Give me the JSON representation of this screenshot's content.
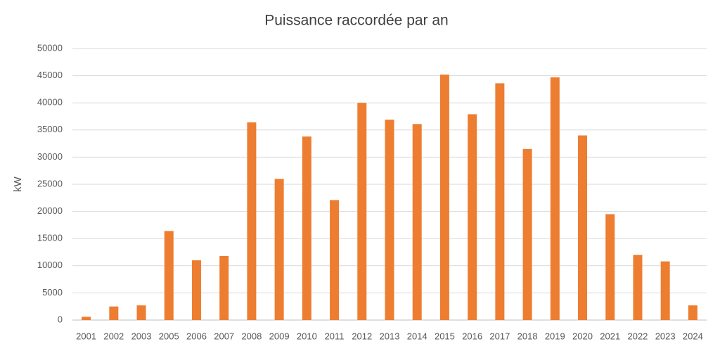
{
  "chart_data": {
    "type": "bar",
    "title": "Puissance raccordée par an",
    "y_label": "kW",
    "categories": [
      "2001",
      "2002",
      "2003",
      "2005",
      "2006",
      "2007",
      "2008",
      "2009",
      "2010",
      "2011",
      "2012",
      "2013",
      "2014",
      "2015",
      "2016",
      "2017",
      "2018",
      "2019",
      "2020",
      "2021",
      "2022",
      "2023",
      "2024"
    ],
    "values": [
      600,
      2500,
      2700,
      16400,
      11000,
      11800,
      36400,
      26000,
      33800,
      22100,
      40000,
      36900,
      36100,
      45200,
      37900,
      43600,
      31500,
      44700,
      34000,
      19500,
      12000,
      10800,
      2700
    ],
    "color": "#ed7d31",
    "ylim": [
      0,
      50000
    ],
    "yticks": [
      0,
      5000,
      10000,
      15000,
      20000,
      25000,
      30000,
      35000,
      40000,
      45000,
      50000
    ],
    "grid": true
  }
}
